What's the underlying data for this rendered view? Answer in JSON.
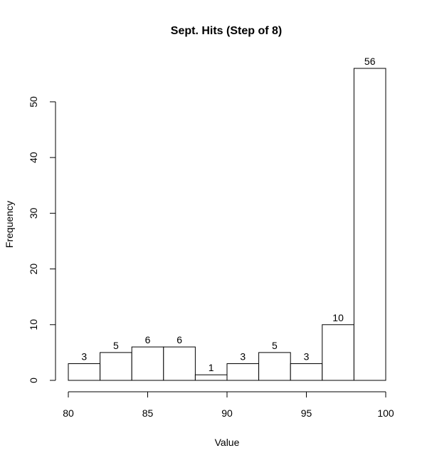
{
  "chart_data": {
    "type": "bar",
    "title": "Sept. Hits (Step of 8)",
    "xlabel": "Value",
    "ylabel": "Frequency",
    "xlim": [
      80,
      100
    ],
    "ylim": [
      0,
      56
    ],
    "x_ticks": [
      80,
      85,
      90,
      95,
      100
    ],
    "y_ticks": [
      0,
      10,
      20,
      30,
      40,
      50
    ],
    "bins": [
      {
        "start": 80,
        "end": 82,
        "value": 3
      },
      {
        "start": 82,
        "end": 84,
        "value": 5
      },
      {
        "start": 84,
        "end": 86,
        "value": 6
      },
      {
        "start": 86,
        "end": 88,
        "value": 6
      },
      {
        "start": 88,
        "end": 90,
        "value": 1
      },
      {
        "start": 90,
        "end": 92,
        "value": 3
      },
      {
        "start": 92,
        "end": 94,
        "value": 5
      },
      {
        "start": 94,
        "end": 96,
        "value": 3
      },
      {
        "start": 96,
        "end": 98,
        "value": 10
      },
      {
        "start": 98,
        "end": 100,
        "value": 56
      }
    ],
    "grid": false,
    "legend": "none",
    "bar_fill": "#ffffff",
    "bar_stroke": "#000000"
  }
}
